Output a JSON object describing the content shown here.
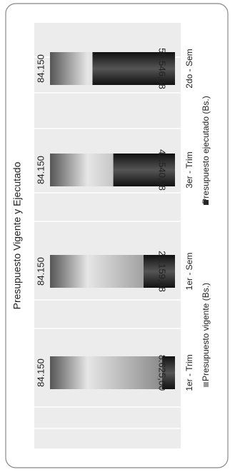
{
  "chart_data": {
    "type": "bar",
    "title": "Presupuesto Vigente y Ejecutado",
    "categories": [
      "1er - Trim",
      "1er - Sem",
      "3er - Trim",
      "2do - Sem"
    ],
    "series": [
      {
        "name": "Presupuesto vigente (Bs.)",
        "color": "#8c8c8c",
        "values": [
          84150,
          84150,
          84150,
          84150
        ],
        "value_labels": [
          "84.150",
          "84.150",
          "84.150",
          "84.150"
        ]
      },
      {
        "name": "Presupuesto ejecutado (Bs.)",
        "color": "#2a2a2a",
        "values": [
          8625.0,
          21159.48,
          41540.98,
          55546.48
        ],
        "value_labels": [
          "8.625,00",
          "21.159,48",
          "41.540,98",
          "55.546,48"
        ]
      }
    ]
  }
}
